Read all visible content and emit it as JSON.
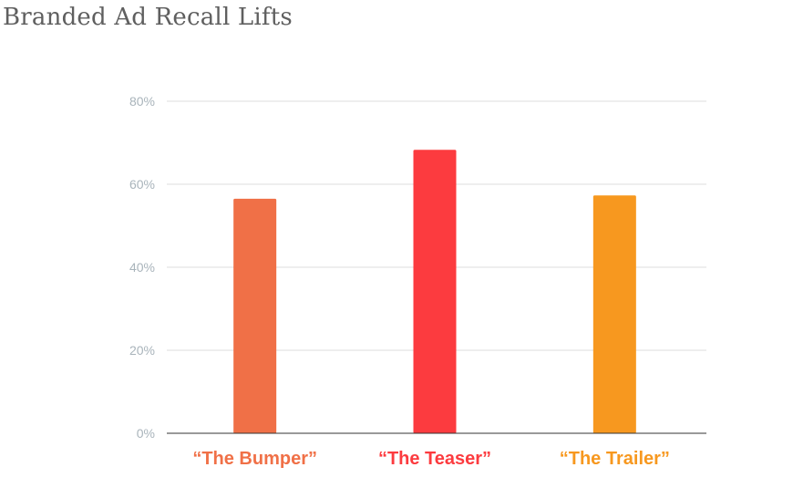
{
  "chart_data": {
    "type": "bar",
    "title": "Branded Ad Recall Lifts",
    "xlabel": "",
    "ylabel": "",
    "categories": [
      "“The Bumper”",
      "“The Teaser”",
      "“The Trailer”"
    ],
    "values": [
      56.5,
      68.3,
      57.3
    ],
    "value_unit": "%",
    "ylim": [
      0,
      80
    ],
    "yticks": [
      0,
      20,
      40,
      60,
      80
    ],
    "ytick_labels": [
      "0%",
      "20%",
      "40%",
      "60%",
      "80%"
    ],
    "grid": true,
    "legend": "none",
    "bar_colors": [
      "#f07047",
      "#fc3b3f",
      "#f7981f"
    ],
    "category_label_colors": [
      "#f07047",
      "#fc3b3f",
      "#f7981f"
    ]
  }
}
